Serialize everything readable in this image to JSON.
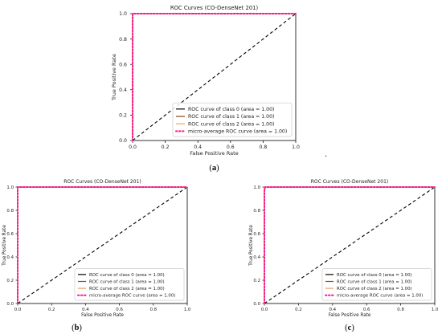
{
  "figure": {
    "stray_mark": "."
  },
  "chart_data": [
    {
      "panel_label": "(a)",
      "type": "line",
      "title": "ROC Curves (CO-DenseNet 201)",
      "xlabel": "False Positive Rate",
      "ylabel": "True Positive Rate",
      "xlim": [
        0.0,
        1.0
      ],
      "ylim": [
        0.0,
        1.0
      ],
      "xticks": [
        "0.0",
        "0.2",
        "0.4",
        "0.6",
        "0.8",
        "1.0"
      ],
      "yticks": [
        "0.0",
        "0.2",
        "0.4",
        "0.6",
        "0.8",
        "1.0"
      ],
      "grid": false,
      "legend_position": "lower-right",
      "series": [
        {
          "name": "ROC curve of class 0 (area = 1.00)",
          "color": "#000000",
          "style": "solid",
          "x": [
            0.0,
            0.0,
            1.0
          ],
          "y": [
            0.0,
            1.0,
            1.0
          ]
        },
        {
          "name": "ROC curve of class 1 (area = 1.00)",
          "color": "#8b4513",
          "style": "solid",
          "x": [
            0.0,
            0.0,
            1.0
          ],
          "y": [
            0.0,
            1.0,
            1.0
          ]
        },
        {
          "name": "ROC curve of class 2 (area = 1.00)",
          "color": "#e8a070",
          "style": "solid",
          "x": [
            0.0,
            0.0,
            1.0
          ],
          "y": [
            0.0,
            1.0,
            1.0
          ]
        },
        {
          "name": "micro-average ROC curve (area = 1.00)",
          "color": "#ff1493",
          "style": "dotted",
          "x": [
            0.0,
            0.0,
            1.0
          ],
          "y": [
            0.0,
            1.0,
            1.0
          ]
        }
      ],
      "reference_line": {
        "x": [
          0.0,
          1.0
        ],
        "y": [
          0.0,
          1.0
        ],
        "color": "#000000",
        "style": "dashed"
      }
    },
    {
      "panel_label": "(b)",
      "type": "line",
      "title": "ROC Curves (CO-DenseNet 201)",
      "xlabel": "False Positive Rate",
      "ylabel": "True Positive Rate",
      "xlim": [
        0.0,
        1.0
      ],
      "ylim": [
        0.0,
        1.0
      ],
      "xticks": [
        "0.0",
        "0.2",
        "0.4",
        "0.6",
        "0.8",
        "1.0"
      ],
      "yticks": [
        "0.0",
        "0.2",
        "0.4",
        "0.6",
        "0.8",
        "1.0"
      ],
      "grid": false,
      "legend_position": "lower-right",
      "series": [
        {
          "name": "ROC curve of class 0 (area = 1.00)",
          "color": "#000000",
          "style": "solid",
          "x": [
            0.0,
            0.0,
            1.0
          ],
          "y": [
            0.0,
            1.0,
            1.0
          ]
        },
        {
          "name": "ROC curve of class 1 (area = 1.00)",
          "color": "#8b4513",
          "style": "solid",
          "x": [
            0.0,
            0.0,
            1.0
          ],
          "y": [
            0.0,
            1.0,
            1.0
          ]
        },
        {
          "name": "ROC curve of class 2 (area = 1.00)",
          "color": "#e8a070",
          "style": "solid",
          "x": [
            0.0,
            0.0,
            1.0
          ],
          "y": [
            0.0,
            1.0,
            1.0
          ]
        },
        {
          "name": "micro-average ROC curve (area = 1.00)",
          "color": "#ff1493",
          "style": "dotted",
          "x": [
            0.0,
            0.0,
            1.0
          ],
          "y": [
            0.0,
            1.0,
            1.0
          ]
        }
      ],
      "reference_line": {
        "x": [
          0.0,
          1.0
        ],
        "y": [
          0.0,
          1.0
        ],
        "color": "#000000",
        "style": "dashed"
      }
    },
    {
      "panel_label": "(c)",
      "type": "line",
      "title": "ROC Curves (CO-DenseNet 201)",
      "xlabel": "False Positive Rate",
      "ylabel": "True Positive Rate",
      "xlim": [
        0.0,
        1.0
      ],
      "ylim": [
        0.0,
        1.0
      ],
      "xticks": [
        "0.0",
        "0.2",
        "0.4",
        "0.6",
        "0.8",
        "1.0"
      ],
      "yticks": [
        "0.0",
        "0.2",
        "0.4",
        "0.6",
        "0.8",
        "1.0"
      ],
      "grid": false,
      "legend_position": "lower-right",
      "series": [
        {
          "name": "ROC curve of class 0 (area = 1.00)",
          "color": "#000000",
          "style": "solid",
          "x": [
            0.0,
            0.0,
            0.005,
            1.0
          ],
          "y": [
            0.0,
            0.97,
            1.0,
            1.0
          ]
        },
        {
          "name": "ROC curve of class 1 (area = 1.00)",
          "color": "#8b4513",
          "style": "solid",
          "x": [
            0.0,
            0.0,
            1.0
          ],
          "y": [
            0.0,
            1.0,
            1.0
          ]
        },
        {
          "name": "ROC curve of class 2 (area = 1.00)",
          "color": "#e8a070",
          "style": "solid",
          "x": [
            0.0,
            0.0,
            1.0
          ],
          "y": [
            0.0,
            1.0,
            1.0
          ]
        },
        {
          "name": "micro-average ROC curve (area = 1.00)",
          "color": "#ff1493",
          "style": "dotted",
          "x": [
            0.0,
            0.0,
            0.005,
            1.0
          ],
          "y": [
            0.0,
            0.97,
            1.0,
            1.0
          ]
        }
      ],
      "reference_line": {
        "x": [
          0.0,
          1.0
        ],
        "y": [
          0.0,
          1.0
        ],
        "color": "#000000",
        "style": "dashed"
      }
    }
  ]
}
